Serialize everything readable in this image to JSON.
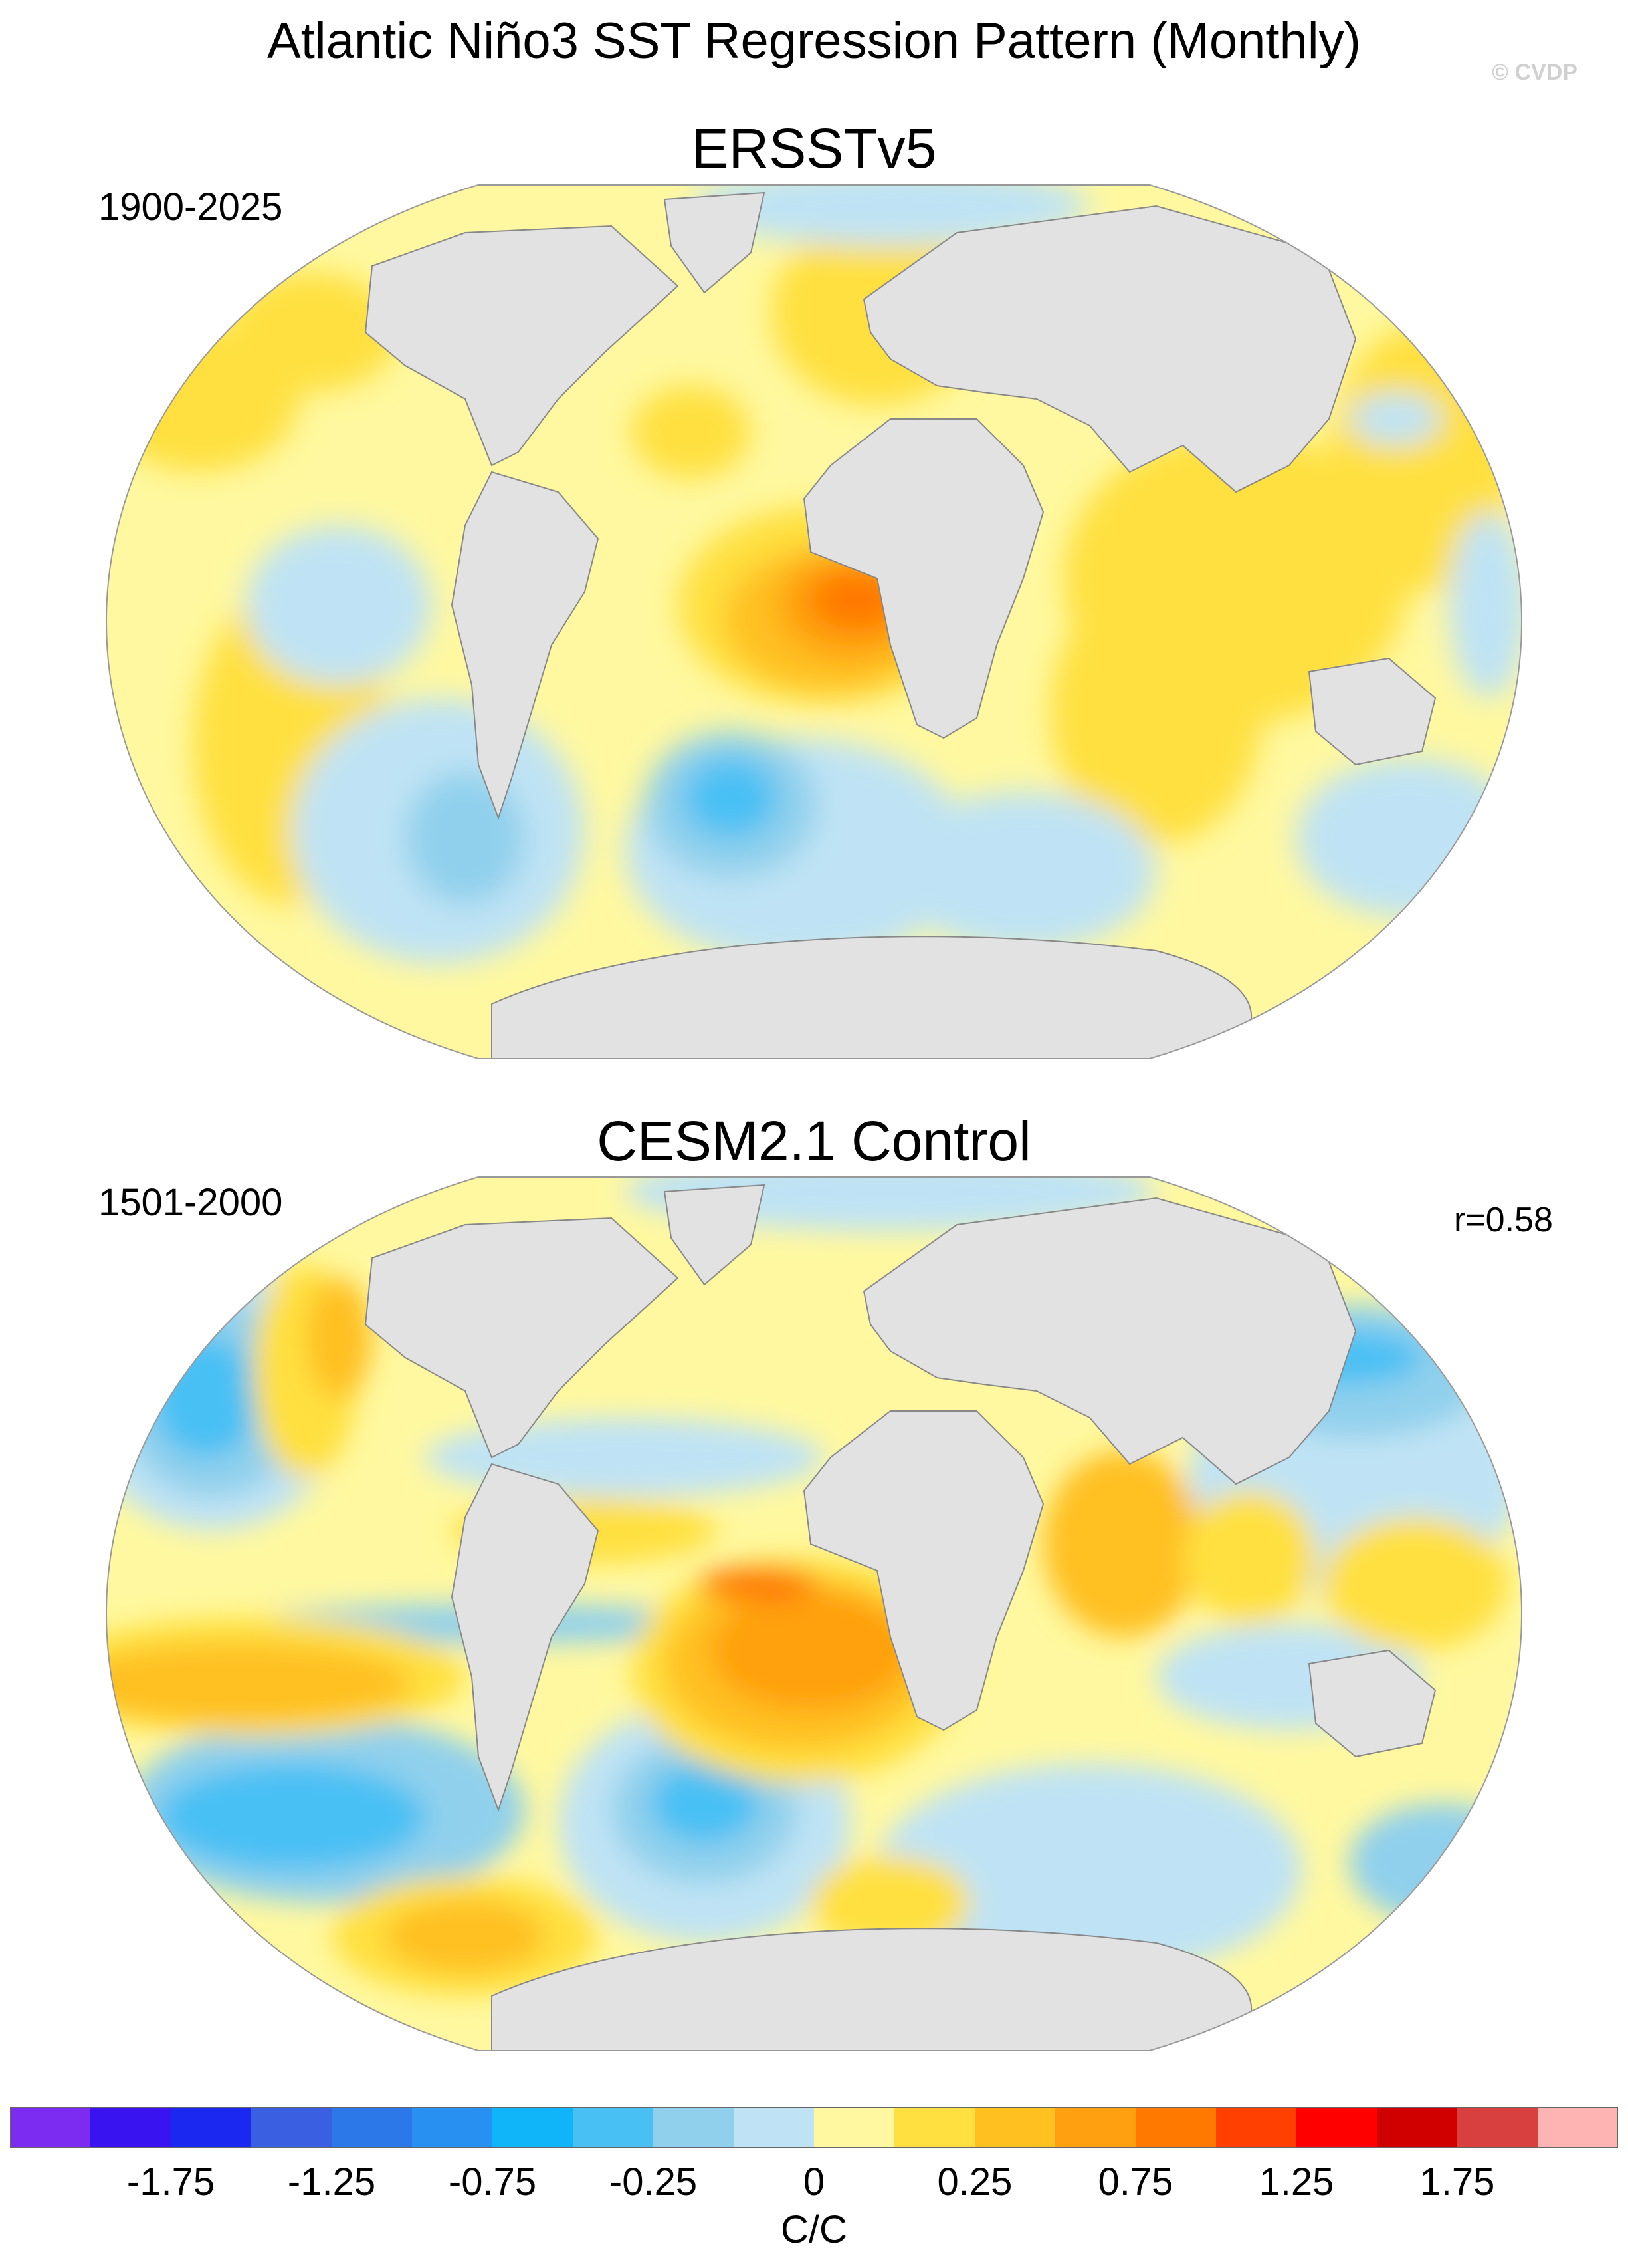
{
  "title": "Atlantic Niño3 SST Regression Pattern (Monthly)",
  "watermark": "© CVDP",
  "panels": [
    {
      "title": "ERSSTv5",
      "period": "1900-2025"
    },
    {
      "title": "CESM2.1 Control",
      "period": "1501-2000",
      "correlation": "r=0.58"
    }
  ],
  "colorbar": {
    "units": "C/C",
    "colors": [
      "#7b2cf0",
      "#3a14f0",
      "#1a28f0",
      "#3a5fe0",
      "#2c78e8",
      "#2890f0",
      "#10b4f8",
      "#48c0f4",
      "#90d0ec",
      "#bfe3f4",
      "#fff8a0",
      "#ffe040",
      "#ffc020",
      "#ffa010",
      "#ff7800",
      "#ff4000",
      "#ff0000",
      "#d00000",
      "#d84040",
      "#ffb4b4"
    ],
    "tick_labels": [
      "-1.75",
      "-1.25",
      "-0.75",
      "-0.25",
      "0",
      "0.25",
      "0.75",
      "1.25",
      "1.75"
    ]
  },
  "legend_colors": {
    "ocean_neutral": "#fff8a0",
    "land": "#e2e2e2"
  }
}
